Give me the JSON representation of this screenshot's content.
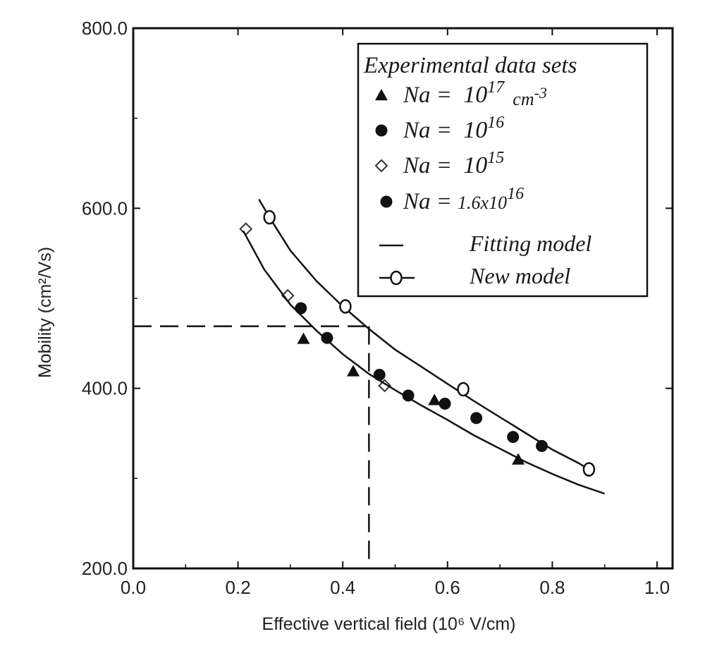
{
  "chart_data": {
    "type": "scatter",
    "xlabel": "Effective vertical field (10⁶ V/cm)",
    "ylabel": "Mobility (cm²/Vs)",
    "xlim": [
      0.0,
      1.0
    ],
    "ylim": [
      200.0,
      800.0
    ],
    "x_ticks": [
      "0.0",
      "0.2",
      "0.4",
      "0.6",
      "0.8",
      "1.0"
    ],
    "y_ticks": [
      "200.0",
      "400.0",
      "600.0",
      "800.0"
    ],
    "grid": false,
    "legend_position": "top-right",
    "legend": {
      "title": "Experimental data sets",
      "entries": [
        {
          "label_pre": "Na = ",
          "base": "10",
          "exp": "17",
          "unit": "cm",
          "unit_exp": "-3",
          "marker": "triangle"
        },
        {
          "label_pre": "Na = ",
          "base": "10",
          "exp": "16",
          "unit": "",
          "unit_exp": "",
          "marker": "circle"
        },
        {
          "label_pre": "Na = ",
          "base": "10",
          "exp": "15",
          "unit": "",
          "unit_exp": "",
          "marker": "diamond-open"
        },
        {
          "label_pre": "Na =",
          "base": "1.6x10",
          "exp": "16",
          "unit": "",
          "unit_exp": "",
          "marker": "circle"
        },
        {
          "label": "Fitting model",
          "marker": "line"
        },
        {
          "label": "New model",
          "marker": "line-open-circle"
        }
      ]
    },
    "series": [
      {
        "name": "Na = 10^17 cm-3",
        "marker": "triangle",
        "x": [
          0.325,
          0.42,
          0.575,
          0.735
        ],
        "y": [
          455,
          419,
          387,
          321
        ]
      },
      {
        "name": "Na = 10^16",
        "marker": "circle",
        "x": [
          0.37,
          0.525,
          0.655,
          0.78
        ],
        "y": [
          456,
          392,
          367,
          336
        ]
      },
      {
        "name": "Na = 10^15",
        "marker": "diamond-open",
        "x": [
          0.215,
          0.295,
          0.48
        ],
        "y": [
          577,
          503,
          403
        ]
      },
      {
        "name": "Na = 1.6x10^16",
        "marker": "circle",
        "x": [
          0.32,
          0.47,
          0.595,
          0.725
        ],
        "y": [
          489,
          415,
          383,
          346
        ]
      },
      {
        "name": "Fitting model",
        "marker": "line",
        "x": [
          0.21,
          0.25,
          0.3,
          0.35,
          0.4,
          0.45,
          0.5,
          0.55,
          0.6,
          0.65,
          0.7,
          0.75,
          0.8,
          0.85,
          0.9
        ],
        "y": [
          575,
          532,
          493,
          464,
          438,
          416,
          398,
          381,
          365,
          348,
          333,
          318,
          305,
          293,
          283
        ]
      },
      {
        "name": "New model",
        "marker": "line-open-circle",
        "x": [
          0.24,
          0.26,
          0.3,
          0.35,
          0.4,
          0.45,
          0.5,
          0.55,
          0.6,
          0.65,
          0.7,
          0.75,
          0.8,
          0.85,
          0.87
        ],
        "y": [
          610,
          590,
          553,
          519,
          491,
          466,
          443,
          424,
          405,
          386,
          368,
          350,
          332,
          317,
          310
        ]
      },
      {
        "name": "New model points",
        "marker": "open-circle",
        "x": [
          0.26,
          0.405,
          0.63,
          0.87
        ],
        "y": [
          590,
          491,
          399,
          310
        ]
      }
    ],
    "annotations": [
      {
        "type": "dashed-line",
        "x": [
          0.0,
          0.45
        ],
        "y": [
          469,
          469
        ]
      },
      {
        "type": "dashed-line",
        "x": [
          0.45,
          0.45
        ],
        "y": [
          469,
          200
        ]
      }
    ]
  }
}
